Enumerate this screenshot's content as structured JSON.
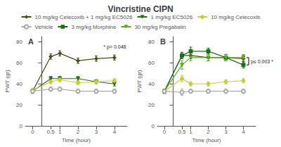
{
  "chart_data": [
    {
      "type": "line",
      "title": "Vincristine CIPN",
      "subtitle": "A",
      "xlabel": "Time (hour)",
      "ylabel": "PWT (gr)",
      "x": [
        -0.5,
        0.5,
        1,
        2,
        3,
        4
      ],
      "xlim": [
        -0.9,
        4.7
      ],
      "xticks": [
        {
          "value": -0.5,
          "label": "0"
        },
        0.5,
        1,
        2,
        3,
        4
      ],
      "ylim": [
        0,
        85
      ],
      "yticks": [
        0,
        20,
        40,
        60,
        80
      ],
      "grid": false,
      "legend": "top",
      "series": [
        {
          "name": "10 mg/kg Celecoxib + 1 mg/kg EC5026",
          "color": "#4a4a1a",
          "marker": "diamond",
          "values": [
            33,
            66,
            69,
            62,
            64,
            65
          ],
          "yerr": [
            2,
            2.5,
            2.5,
            2.5,
            2.5,
            2.5
          ]
        },
        {
          "name": "1 mg/kg EC5026",
          "color": "#2d6e1a",
          "marker": "triangle-down",
          "values": [
            33,
            45,
            45,
            45,
            42,
            40
          ],
          "yerr": [
            2,
            2,
            2,
            2,
            2,
            2
          ]
        },
        {
          "name": "10 mg/kg Celecoxib",
          "color": "#c8cc40",
          "marker": "circle",
          "values": [
            34,
            42,
            44,
            41,
            42,
            43
          ],
          "yerr": [
            2,
            2,
            2,
            2,
            2,
            2
          ]
        },
        {
          "name": "Vehicle",
          "color": "#aaaaaa",
          "marker": "circle-open",
          "values": [
            33,
            35,
            35,
            33,
            33,
            33
          ],
          "yerr": [
            2,
            2,
            2,
            2,
            2,
            2
          ]
        }
      ],
      "annotations": [
        {
          "text": "* p= 0.048",
          "x": 3.4,
          "y": 73
        }
      ]
    },
    {
      "type": "line",
      "subtitle": "B",
      "xlabel": "Time (hour)",
      "ylabel": "PWT (gr)",
      "x": [
        -0.5,
        0.5,
        1,
        2,
        3,
        4
      ],
      "xlim": [
        -0.9,
        4.7
      ],
      "xticks": [
        {
          "value": -0.5,
          "label": "0"
        },
        0.5,
        1,
        2,
        3,
        4
      ],
      "ylim": [
        0,
        85
      ],
      "yticks": [
        0,
        20,
        40,
        60,
        80
      ],
      "grid": false,
      "legend": "top",
      "series": [
        {
          "name": "10 mg/kg Celecoxib + 1 mg/kg EC5026",
          "color": "#4a4a1a",
          "marker": "diamond",
          "values": [
            33,
            67,
            67,
            65,
            65,
            64
          ],
          "yerr": [
            2,
            3,
            3,
            3,
            3,
            3
          ]
        },
        {
          "name": "3 mg/kg Morphine",
          "color": "#1a6e1a",
          "marker": "square",
          "values": [
            33,
            67,
            71,
            71,
            65,
            58
          ],
          "yerr": [
            2,
            3,
            4,
            3,
            3,
            3
          ]
        },
        {
          "name": "30 mg/kg Pregabalin",
          "color": "#5aaa20",
          "marker": "triangle-down",
          "values": [
            33,
            58,
            65,
            65,
            65,
            65
          ],
          "yerr": [
            2,
            4,
            3,
            3,
            3,
            3
          ]
        },
        {
          "name": "10 mg/kg Celecoxib",
          "color": "#c8cc40",
          "marker": "circle",
          "values": [
            33,
            45,
            40,
            40,
            42,
            43
          ],
          "yerr": [
            2,
            3,
            2,
            2,
            2,
            2
          ]
        },
        {
          "name": "Vehicle",
          "color": "#aaaaaa",
          "marker": "circle-open",
          "values": [
            33,
            32,
            33,
            33,
            33,
            33
          ],
          "yerr": [
            2,
            3,
            2,
            2,
            2,
            2
          ]
        }
      ],
      "annotations": [
        {
          "text": "p≤ 0.003 *",
          "x": 4.3,
          "y": [
            58,
            65
          ]
        }
      ]
    }
  ]
}
